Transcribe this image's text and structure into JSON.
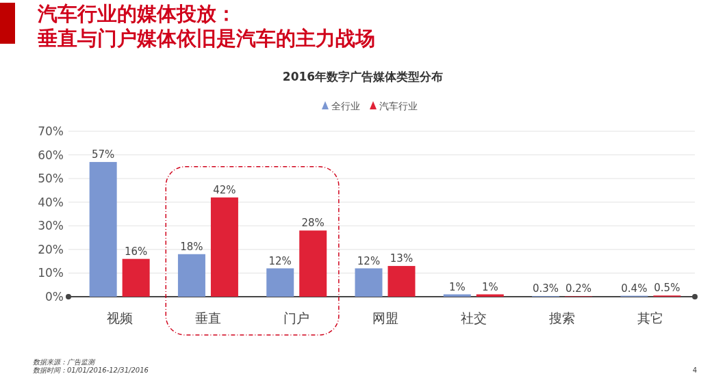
{
  "chart_data": {
    "type": "bar",
    "title": "汽车行业的媒体投放：垂直与门户媒体依旧是汽车的主力战场",
    "subtitle": "2016年数字广告媒体类型分布",
    "categories": [
      "视频",
      "垂直",
      "门户",
      "网盟",
      "社交",
      "搜索",
      "其它"
    ],
    "series": [
      {
        "name": "全行业",
        "color": "#7b97d2",
        "values": [
          57,
          18,
          12,
          12,
          1,
          0.3,
          0.4
        ],
        "value_labels": [
          "57%",
          "18%",
          "12%",
          "12%",
          "1%",
          "0.3%",
          "0.4%"
        ]
      },
      {
        "name": "汽车行业",
        "color": "#e02237",
        "values": [
          16,
          42,
          28,
          13,
          1,
          0.2,
          0.5
        ],
        "value_labels": [
          "16%",
          "42%",
          "28%",
          "13%",
          "1%",
          "0.2%",
          "0.5%"
        ]
      }
    ],
    "ylim": [
      0,
      70
    ],
    "yticks": [
      {
        "value": 0,
        "label": "0%"
      },
      {
        "value": 10,
        "label": "10%"
      },
      {
        "value": 20,
        "label": "20%"
      },
      {
        "value": 30,
        "label": "30%"
      },
      {
        "value": 40,
        "label": "40%"
      },
      {
        "value": 50,
        "label": "50%"
      },
      {
        "value": 60,
        "label": "60%"
      },
      {
        "value": 70,
        "label": "70%"
      }
    ],
    "grid": "y",
    "legend": "top",
    "marker": "triangle",
    "annotations": [
      "数据来源：广告监测",
      "数据时间：01/01/2016-12/31/2016",
      "4"
    ]
  }
}
